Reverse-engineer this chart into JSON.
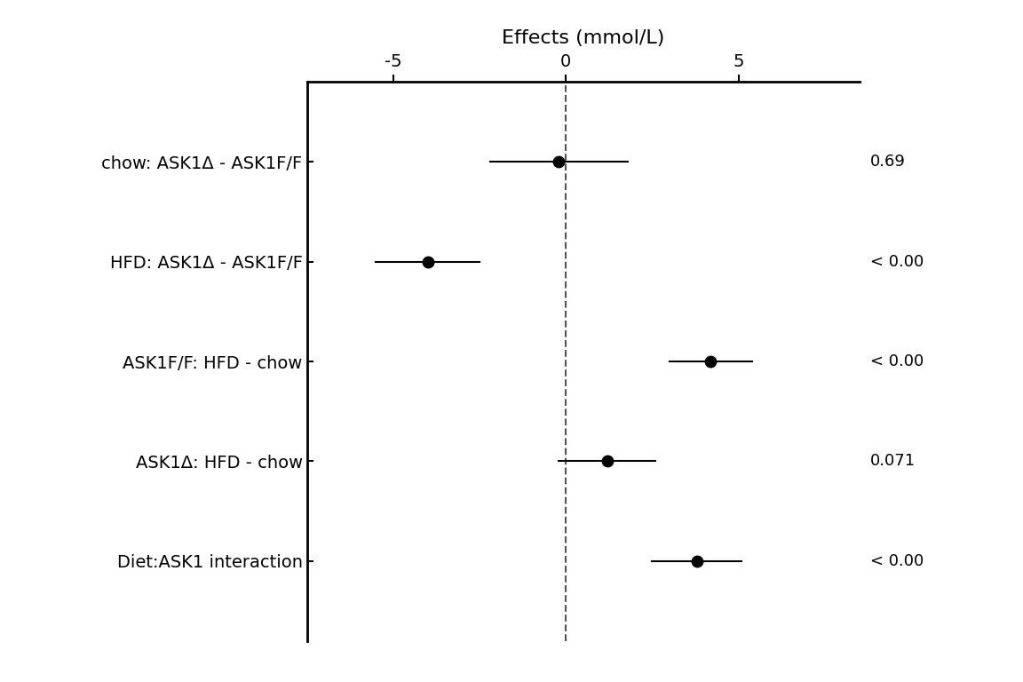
{
  "title": "Effects (mmol/L)",
  "labels": [
    "chow: ASK1Δ - ASK1F/F",
    "HFD: ASK1Δ - ASK1F/F",
    "ASK1F/F: HFD - chow",
    "ASK1Δ: HFD - chow",
    "Diet:ASK1 interaction"
  ],
  "estimates": [
    -0.2,
    -4.0,
    4.2,
    1.2,
    3.8
  ],
  "ci_lower": [
    -2.2,
    -5.5,
    3.0,
    -0.2,
    2.5
  ],
  "ci_upper": [
    1.8,
    -2.5,
    5.4,
    2.6,
    5.1
  ],
  "pvalues": [
    "0.69",
    "< 0.00",
    "< 0.00",
    "0.071",
    "< 0.00"
  ],
  "xlim": [
    -7.5,
    8.5
  ],
  "xticks": [
    -5,
    0,
    5
  ],
  "xticklabels": [
    "-5",
    "0",
    "5"
  ],
  "background_color": "#ffffff",
  "point_color": "#000000",
  "line_color": "#000000",
  "dashed_line_color": "#555555",
  "fontsize_labels": 14,
  "fontsize_title": 16,
  "fontsize_pvalues": 13,
  "fontsize_ticks": 14
}
